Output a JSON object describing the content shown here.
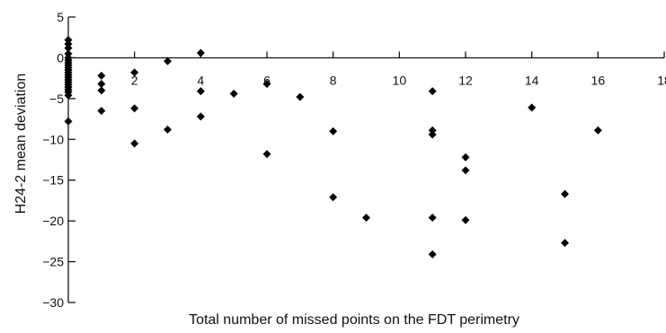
{
  "chart_data": {
    "type": "scatter",
    "title": "",
    "xlabel": "Total number of missed points on the FDT perimetry",
    "ylabel": "H24-2 mean deviation",
    "xlim": [
      0,
      18
    ],
    "ylim": [
      -30,
      5
    ],
    "x_ticks": [
      "2",
      "4",
      "6",
      "8",
      "10",
      "12",
      "14",
      "16",
      "18"
    ],
    "y_ticks": [
      "5",
      "0",
      "−5",
      "−10",
      "−15",
      "−20",
      "−25",
      "−30"
    ],
    "x_tick_values": [
      2,
      4,
      6,
      8,
      10,
      12,
      14,
      16,
      18
    ],
    "y_tick_values": [
      5,
      0,
      -5,
      -10,
      -15,
      -20,
      -25,
      -30
    ],
    "grid": false,
    "legend": "none",
    "marker": "diamond",
    "marker_color": "#000000",
    "series": [
      {
        "x": [
          0,
          0,
          0,
          0,
          0,
          0,
          0,
          0,
          0,
          0,
          0,
          0,
          0,
          0,
          0,
          0,
          0,
          0,
          0,
          0,
          0,
          1,
          1,
          1,
          1,
          2,
          2,
          2,
          3,
          3,
          4,
          4,
          4,
          5,
          6,
          6,
          7,
          8,
          8,
          9,
          11,
          11,
          11,
          11,
          11,
          12,
          12,
          12,
          14,
          15,
          15,
          16
        ],
        "y": [
          2.2,
          1.7,
          1.2,
          0.5,
          0,
          -0.3,
          -0.6,
          -0.9,
          -1.2,
          -1.5,
          -1.8,
          -2.1,
          -2.4,
          -2.7,
          -3.0,
          -3.3,
          -3.6,
          -3.9,
          -4.2,
          -4.6,
          -7.8,
          -2.2,
          -3.2,
          -4.0,
          -6.5,
          -1.8,
          -6.2,
          -10.5,
          -0.4,
          -8.8,
          0.6,
          -4.1,
          -7.2,
          -4.4,
          -3.2,
          -11.8,
          -4.8,
          -9.0,
          -17.1,
          -19.6,
          -4.1,
          -8.9,
          -9.4,
          -19.6,
          -24.1,
          -12.2,
          -13.8,
          -19.9,
          -6.1,
          -16.7,
          -22.7,
          -8.9
        ]
      }
    ]
  }
}
